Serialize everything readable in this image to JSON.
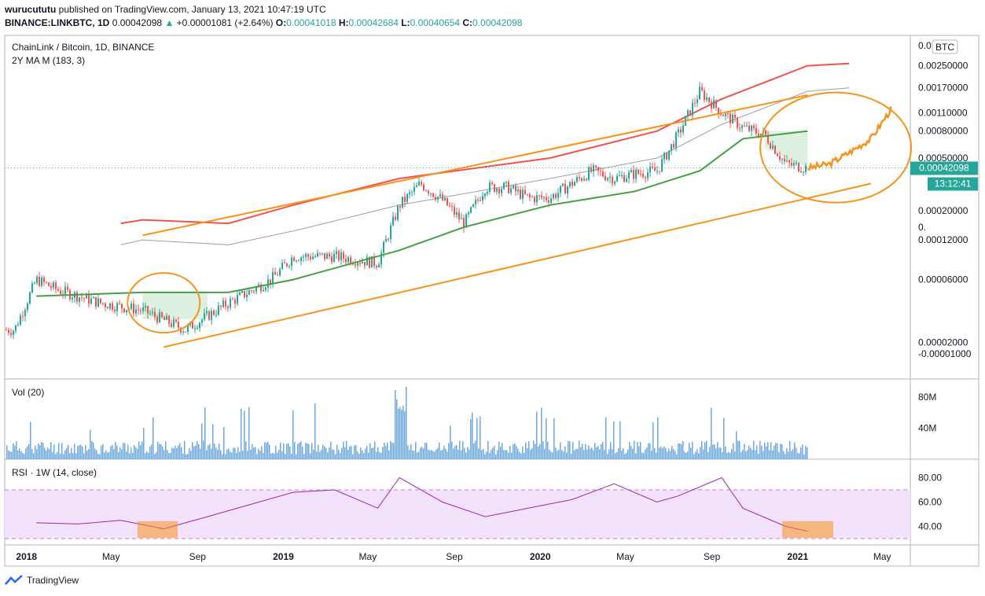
{
  "header": {
    "author": "wurucututu",
    "published_text": "published on TradingView.com, January 13, 2021 10:47:19 UTC",
    "symbol": "BINANCE:LINKBTC, 1D",
    "last": "0.00042098",
    "change": "+0.00001081 (+2.64%)",
    "o_label": "O:",
    "o": "0.00041018",
    "h_label": "H:",
    "h": "0.00042684",
    "l_label": "L:",
    "l": "0.00040654",
    "c_label": "C:",
    "c": "0.00042098"
  },
  "colors": {
    "up": "#26a69a",
    "down": "#ef5350",
    "ma_green": "#43a047",
    "band_red": "#ef5350",
    "band_grey": "#9e9e9e",
    "drawing_orange": "#f7931a",
    "rsi_line": "#9c27b0",
    "rsi_fill": "#f3e2fb",
    "volume": "#6fa8dc",
    "price_tag": "#26a69a"
  },
  "chart_data": [
    {
      "type": "line",
      "title": "ChainLink / Bitcoin, 1D, BINANCE",
      "indicator_label": "2Y MA M (183, 3)",
      "currency_badge": "BTC",
      "scale": "log",
      "price_labels": [
        "0.00250000",
        "0.00170000",
        "0.00110000",
        "0.00080000",
        "0.00050000",
        "0.00020000",
        "0.00012000",
        "0.00006000",
        "0.00002000",
        "-0.00001000"
      ],
      "top_label_partial": "0.0",
      "mid_label_partial": "0.",
      "current_price_tag": "0.00042098",
      "countdown_tag": "13:12:41",
      "x_labels": [
        "2018",
        "May",
        "Sep",
        "2019",
        "May",
        "Sep",
        "2020",
        "May",
        "Sep",
        "2021",
        "May"
      ],
      "x_dates": [
        "2018-01",
        "2018-05",
        "2018-09",
        "2019-01",
        "2019-05",
        "2019-09",
        "2020-01",
        "2020-05",
        "2020-09",
        "2021-01",
        "2021-05"
      ],
      "series": [
        {
          "name": "LINKBTC",
          "x": [
            "2017-12",
            "2018-01",
            "2018-02",
            "2018-04",
            "2018-06",
            "2018-08",
            "2018-10",
            "2018-12",
            "2019-01",
            "2019-03",
            "2019-05",
            "2019-06",
            "2019-07",
            "2019-08",
            "2019-09",
            "2019-10",
            "2019-11",
            "2019-12",
            "2020-01",
            "2020-02",
            "2020-03",
            "2020-04",
            "2020-05",
            "2020-06",
            "2020-07",
            "2020-08",
            "2020-09",
            "2020-10",
            "2020-11",
            "2020-12",
            "2021-01"
          ],
          "values": [
            2.5e-05,
            6e-05,
            5e-05,
            4e-05,
            3.5e-05,
            2.5e-05,
            4e-05,
            6e-05,
            9e-05,
            9e-05,
            8e-05,
            0.00022,
            0.00032,
            0.00024,
            0.00016,
            0.0003,
            0.0003,
            0.00025,
            0.00025,
            0.00032,
            0.0004,
            0.00035,
            0.00038,
            0.0004,
            0.00075,
            0.0016,
            0.0011,
            0.00085,
            0.00075,
            0.00045,
            0.00042
          ]
        },
        {
          "name": "MA",
          "x": [
            "2018-01",
            "2018-06",
            "2018-10",
            "2019-01",
            "2019-06",
            "2019-09",
            "2020-01",
            "2020-05",
            "2020-08",
            "2020-10",
            "2021-01"
          ],
          "values": [
            4.5e-05,
            4.8e-05,
            4.8e-05,
            6e-05,
            0.0001,
            0.00015,
            0.00022,
            0.00028,
            0.0004,
            0.0007,
            0.0008
          ]
        },
        {
          "name": "Upper band",
          "x": [
            "2018-05",
            "2018-06",
            "2018-10",
            "2019-01",
            "2019-06",
            "2020-01",
            "2020-06",
            "2020-09",
            "2021-01",
            "2021-03"
          ],
          "values": [
            0.00016,
            0.00017,
            0.00016,
            0.00022,
            0.00035,
            0.0005,
            0.0008,
            0.0014,
            0.0025,
            0.0026
          ]
        },
        {
          "name": "Middle band",
          "x": [
            "2018-05",
            "2018-06",
            "2018-10",
            "2019-01",
            "2019-06",
            "2020-01",
            "2020-06",
            "2020-09",
            "2021-01",
            "2021-03"
          ],
          "values": [
            0.00011,
            0.00012,
            0.00011,
            0.00014,
            0.00022,
            0.00035,
            0.0005,
            0.0009,
            0.0016,
            0.0017
          ]
        },
        {
          "name": "Projection",
          "x": [
            "2021-01",
            "2021-02",
            "2021-03",
            "2021-04",
            "2021-05"
          ],
          "values": [
            0.00042,
            0.00045,
            0.00055,
            0.0007,
            0.0012
          ]
        }
      ]
    },
    {
      "type": "bar",
      "title": "Vol (20)",
      "y_labels": [
        "80M",
        "40M"
      ]
    },
    {
      "type": "line",
      "title": "RSI · 1W (14, close)",
      "y_labels": [
        "80.00",
        "60.00",
        "40.00"
      ],
      "ylim": [
        30,
        90
      ],
      "bands": [
        30,
        70
      ],
      "series": [
        {
          "name": "RSI",
          "x": [
            "2018-01",
            "2018-03",
            "2018-05",
            "2018-07",
            "2018-09",
            "2018-11",
            "2019-01",
            "2019-03",
            "2019-05",
            "2019-06",
            "2019-08",
            "2019-10",
            "2019-12",
            "2020-02",
            "2020-04",
            "2020-06",
            "2020-07",
            "2020-09",
            "2020-10",
            "2020-12",
            "2021-01"
          ],
          "values": [
            43,
            42,
            45,
            38,
            48,
            58,
            68,
            70,
            55,
            80,
            60,
            48,
            55,
            62,
            75,
            60,
            65,
            80,
            55,
            40,
            36
          ]
        }
      ]
    }
  ],
  "footer": {
    "brand": "TradingView"
  }
}
